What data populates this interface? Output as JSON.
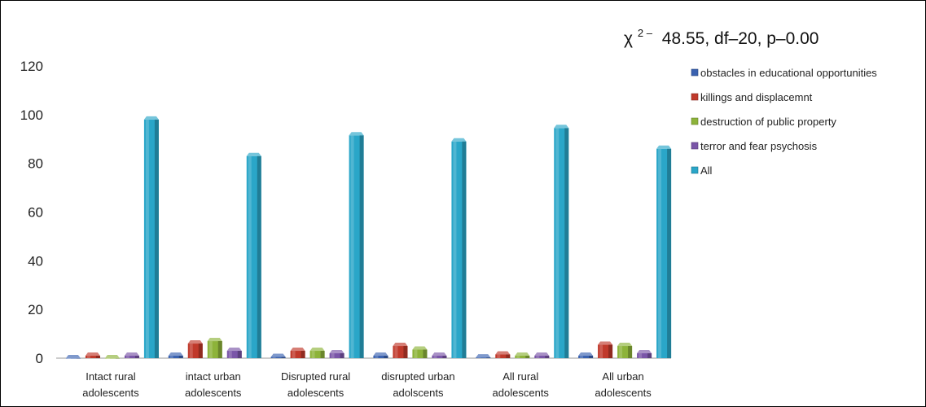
{
  "chart_data": {
    "type": "bar",
    "annotation": {
      "symbol": "χ",
      "superscript": "2 –",
      "text": "48.55, df–20, p–0.00"
    },
    "categories": [
      [
        "Intact rural",
        "adolescents"
      ],
      [
        "intact urban",
        "adolescents"
      ],
      [
        "Disrupted rural",
        "adolescents"
      ],
      [
        "disrupted urban",
        "adolscents"
      ],
      [
        "All rural",
        "adolescents"
      ],
      [
        "All urban",
        "adolescents"
      ]
    ],
    "series": [
      {
        "name": "obstacles in educational opportunities",
        "color": "#3a62b0",
        "values": [
          0,
          1,
          0.5,
          1,
          0.3,
          1
        ]
      },
      {
        "name": "killings and displacemnt",
        "color": "#c0392b",
        "values": [
          1,
          6,
          3,
          5,
          1.5,
          5.5
        ]
      },
      {
        "name": "destruction of public property",
        "color": "#8db33a",
        "values": [
          0,
          7,
          3,
          3.5,
          1,
          5
        ]
      },
      {
        "name": "terror and fear psychosis",
        "color": "#7a55a8",
        "values": [
          1,
          3,
          2,
          1,
          1,
          2
        ]
      },
      {
        "name": "All",
        "color": "#2aa6c8",
        "values": [
          98,
          83,
          91.5,
          89,
          94.5,
          86
        ]
      }
    ],
    "ylim": [
      0,
      120
    ],
    "yticks": [
      "0",
      "20",
      "40",
      "60",
      "80",
      "100",
      "120"
    ],
    "grid": false,
    "legend_position": "right"
  }
}
